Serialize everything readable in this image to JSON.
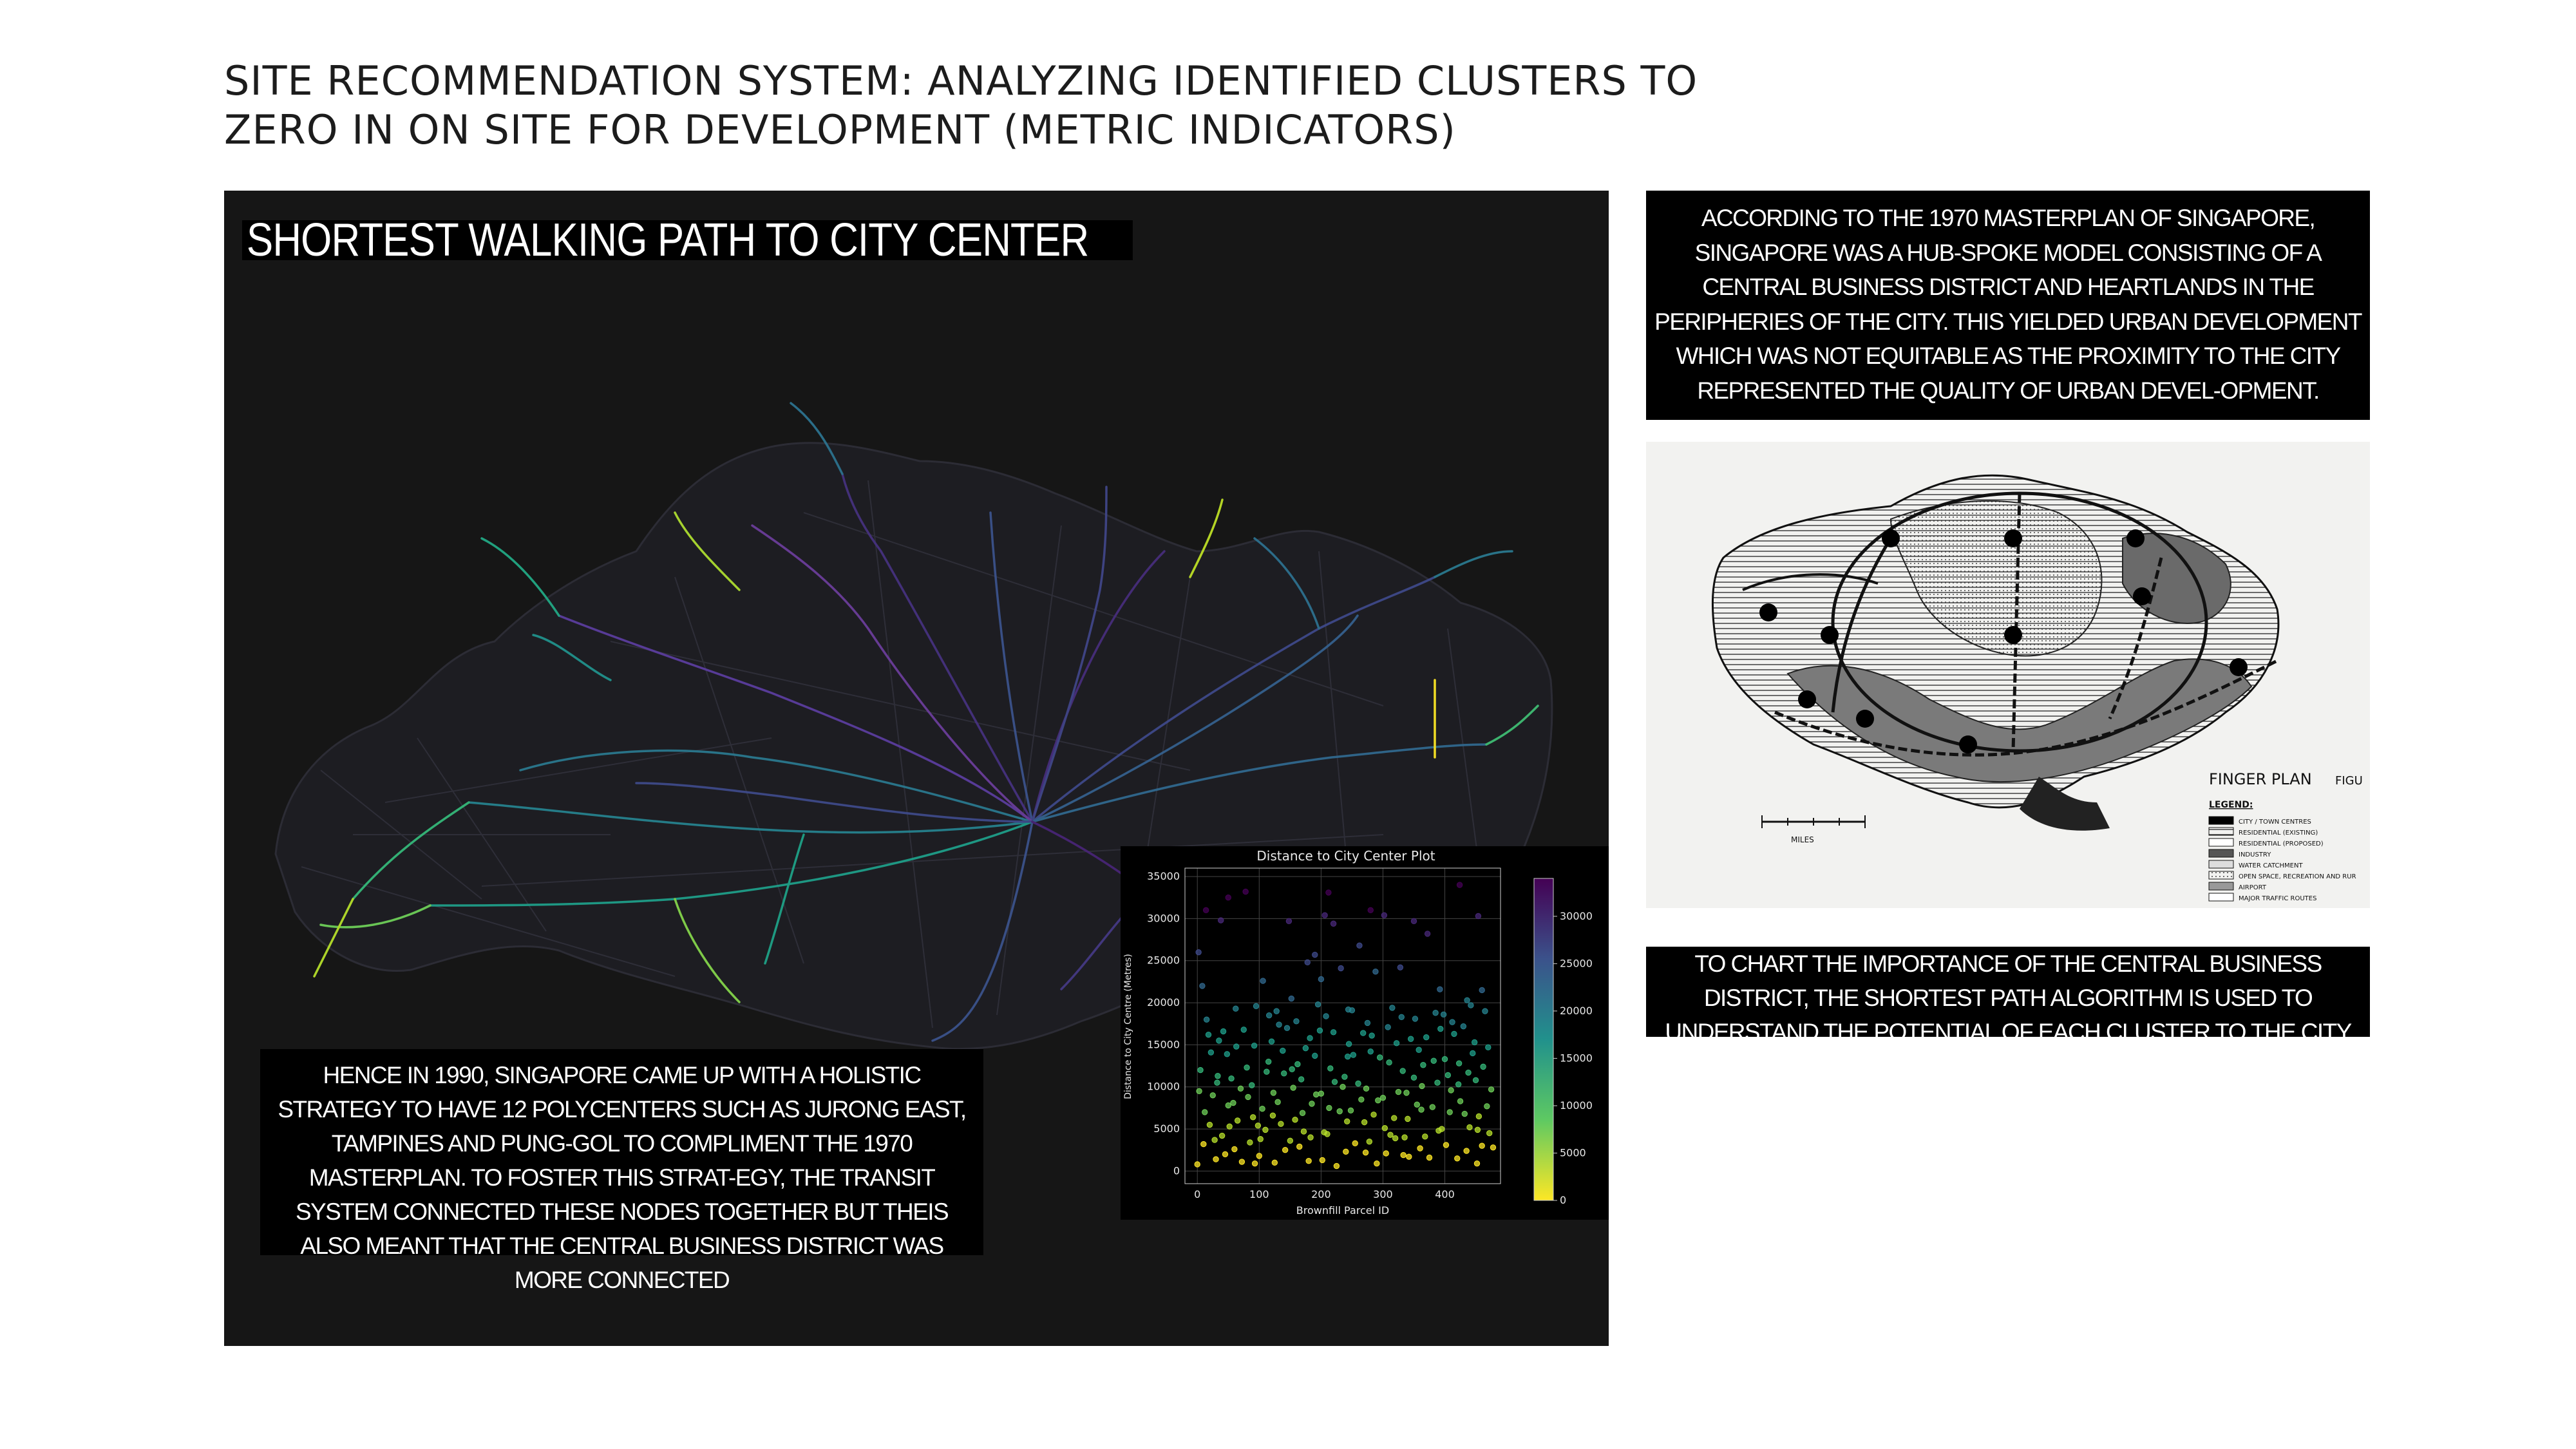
{
  "page": {
    "title": "SITE RECOMMENDATION SYSTEM: ANALYZING IDENTIFIED CLUSTERS TO\nZERO IN ON SITE FOR DEVELOPMENT (METRIC INDICATORS)"
  },
  "map_panel": {
    "title": "SHORTEST WALKING PATH TO CITY CENTER",
    "caption": "HENCE IN 1990, SINGAPORE CAME UP WITH A HOLISTIC STRATEGY TO HAVE 12 POLYCENTERS SUCH AS JURONG EAST, TAMPINES AND PUNG-GOL TO COMPLIMENT THE 1970 MASTERPLAN. TO FOSTER THIS STRAT-EGY, THE TRANSIT SYSTEM CONNECTED THESE NODES TOGETHER BUT THEIS ALSO MEANT THAT THE CENTRAL BUSINESS DISTRICT WAS MORE CONNECTED"
  },
  "right_column": {
    "intro_text": "ACCORDING TO THE 1970 MASTERPLAN OF SINGAPORE, SINGAPORE WAS A HUB-SPOKE MODEL CONSISTING OF A CENTRAL BUSINESS DISTRICT AND HEARTLANDS IN THE PERIPHERIES OF THE CITY. THIS YIELDED URBAN DEVELOPMENT WHICH WAS NOT EQUITABLE AS THE PROXIMITY TO THE CITY REPRESENTED THE QUALITY OF URBAN DEVEL-OPMENT.",
    "finger_plan": {
      "title": "FINGER PLAN",
      "figure_label": "FIGU",
      "legend_heading": "LEGEND:",
      "legend": [
        "CITY / TOWN CENTRES",
        "RESIDENTIAL (EXISTING)",
        "RESIDENTIAL (PROPOSED)",
        "INDUSTRY",
        "WATER CATCHMENT",
        "OPEN SPACE, RECREATION AND RUR",
        "AIRPORT",
        "MAJOR TRAFFIC ROUTES"
      ],
      "scale_label": "MILES"
    },
    "bottom_text": "TO CHART THE IMPORTANCE OF THE CENTRAL BUSINESS DISTRICT, THE SHORTEST PATH ALGORITHM IS USED TO UNDERSTAND THE POTENTIAL OF EACH CLUSTER TO THE CITY CENTER."
  },
  "chart_data": {
    "type": "scatter",
    "title": "Distance to City Center Plot",
    "xlabel": "Brownfill Parcel ID",
    "ylabel": "Distance to City Centre (Metres)",
    "xlim": [
      -20,
      490
    ],
    "ylim": [
      -1500,
      36000
    ],
    "xticks": [
      0,
      100,
      200,
      300,
      400
    ],
    "yticks": [
      0,
      5000,
      10000,
      15000,
      20000,
      25000,
      30000,
      35000
    ],
    "grid": true,
    "colorbar": {
      "ticks": [
        0,
        5000,
        10000,
        15000,
        20000,
        25000,
        30000
      ],
      "range": [
        0,
        34000
      ],
      "colormap": "viridis"
    },
    "points": [
      [
        2,
        26000
      ],
      [
        8,
        22000
      ],
      [
        14,
        31000
      ],
      [
        38,
        29800
      ],
      [
        50,
        32500
      ],
      [
        78,
        33200
      ],
      [
        106,
        22600
      ],
      [
        116,
        18500
      ],
      [
        148,
        29700
      ],
      [
        152,
        20500
      ],
      [
        178,
        24800
      ],
      [
        190,
        25700
      ],
      [
        200,
        22800
      ],
      [
        206,
        30400
      ],
      [
        212,
        33100
      ],
      [
        220,
        29400
      ],
      [
        232,
        24100
      ],
      [
        244,
        19200
      ],
      [
        262,
        26800
      ],
      [
        280,
        31000
      ],
      [
        288,
        23700
      ],
      [
        302,
        30400
      ],
      [
        328,
        24200
      ],
      [
        350,
        29700
      ],
      [
        372,
        28200
      ],
      [
        392,
        21600
      ],
      [
        424,
        34000
      ],
      [
        436,
        20300
      ],
      [
        454,
        30300
      ],
      [
        460,
        21500
      ],
      [
        0,
        800
      ],
      [
        10,
        3200
      ],
      [
        20,
        5500
      ],
      [
        30,
        1400
      ],
      [
        40,
        4200
      ],
      [
        50,
        7800
      ],
      [
        60,
        2600
      ],
      [
        70,
        9800
      ],
      [
        80,
        12300
      ],
      [
        90,
        6400
      ],
      [
        100,
        1800
      ],
      [
        110,
        4900
      ],
      [
        120,
        15400
      ],
      [
        130,
        8200
      ],
      [
        140,
        11600
      ],
      [
        150,
        3600
      ],
      [
        160,
        17800
      ],
      [
        170,
        6900
      ],
      [
        180,
        1200
      ],
      [
        190,
        13700
      ],
      [
        200,
        9200
      ],
      [
        210,
        4400
      ],
      [
        220,
        16500
      ],
      [
        230,
        7100
      ],
      [
        240,
        2300
      ],
      [
        250,
        19100
      ],
      [
        260,
        10400
      ],
      [
        270,
        5800
      ],
      [
        280,
        14200
      ],
      [
        290,
        900
      ],
      [
        300,
        8700
      ],
      [
        310,
        12900
      ],
      [
        320,
        3900
      ],
      [
        330,
        18300
      ],
      [
        340,
        6200
      ],
      [
        350,
        11100
      ],
      [
        360,
        2700
      ],
      [
        370,
        15900
      ],
      [
        380,
        7600
      ],
      [
        390,
        4800
      ],
      [
        400,
        13300
      ],
      [
        410,
        9600
      ],
      [
        420,
        1500
      ],
      [
        430,
        17200
      ],
      [
        440,
        5200
      ],
      [
        450,
        10800
      ],
      [
        460,
        3000
      ],
      [
        470,
        14700
      ],
      [
        5,
        12000
      ],
      [
        15,
        18000
      ],
      [
        25,
        9000
      ],
      [
        35,
        15500
      ],
      [
        45,
        2000
      ],
      [
        55,
        11000
      ],
      [
        65,
        6000
      ],
      [
        75,
        16800
      ],
      [
        85,
        3400
      ],
      [
        95,
        19600
      ],
      [
        105,
        7400
      ],
      [
        115,
        13000
      ],
      [
        125,
        1000
      ],
      [
        135,
        5600
      ],
      [
        145,
        17000
      ],
      [
        155,
        9900
      ],
      [
        165,
        2900
      ],
      [
        175,
        14600
      ],
      [
        185,
        8000
      ],
      [
        195,
        19800
      ],
      [
        205,
        4600
      ],
      [
        215,
        12200
      ],
      [
        225,
        600
      ],
      [
        235,
        10000
      ],
      [
        245,
        15100
      ],
      [
        255,
        3300
      ],
      [
        265,
        8500
      ],
      [
        275,
        17600
      ],
      [
        285,
        6700
      ],
      [
        295,
        13500
      ],
      [
        305,
        2100
      ],
      [
        315,
        19400
      ],
      [
        325,
        9400
      ],
      [
        335,
        4000
      ],
      [
        345,
        15700
      ],
      [
        355,
        7900
      ],
      [
        365,
        12600
      ],
      [
        375,
        1600
      ],
      [
        385,
        18800
      ],
      [
        395,
        5000
      ],
      [
        405,
        11400
      ],
      [
        415,
        16300
      ],
      [
        425,
        8300
      ],
      [
        435,
        2400
      ],
      [
        445,
        14000
      ],
      [
        455,
        6500
      ],
      [
        465,
        19000
      ],
      [
        475,
        9700
      ],
      [
        12,
        7000
      ],
      [
        22,
        14100
      ],
      [
        32,
        10500
      ],
      [
        42,
        16600
      ],
      [
        52,
        5300
      ],
      [
        62,
        19300
      ],
      [
        72,
        1100
      ],
      [
        82,
        8800
      ],
      [
        92,
        14900
      ],
      [
        102,
        3800
      ],
      [
        112,
        11800
      ],
      [
        122,
        6600
      ],
      [
        132,
        17400
      ],
      [
        142,
        2500
      ],
      [
        162,
        12700
      ],
      [
        172,
        4700
      ],
      [
        182,
        15800
      ],
      [
        192,
        9100
      ],
      [
        202,
        1300
      ],
      [
        222,
        10600
      ],
      [
        242,
        5900
      ],
      [
        252,
        13800
      ],
      [
        272,
        2200
      ],
      [
        282,
        16100
      ],
      [
        292,
        8400
      ],
      [
        312,
        4300
      ],
      [
        322,
        15200
      ],
      [
        332,
        11900
      ],
      [
        342,
        1700
      ],
      [
        352,
        18100
      ],
      [
        362,
        7300
      ],
      [
        382,
        13100
      ],
      [
        402,
        3100
      ],
      [
        412,
        17700
      ],
      [
        422,
        10300
      ],
      [
        432,
        6800
      ],
      [
        442,
        19700
      ],
      [
        452,
        900
      ],
      [
        462,
        12400
      ],
      [
        472,
        4500
      ],
      [
        18,
        16200
      ],
      [
        48,
        13900
      ],
      [
        88,
        10200
      ],
      [
        128,
        19000
      ],
      [
        168,
        10900
      ],
      [
        208,
        18400
      ],
      [
        248,
        7200
      ],
      [
        268,
        16400
      ],
      [
        308,
        17100
      ],
      [
        338,
        9300
      ],
      [
        368,
        4100
      ],
      [
        388,
        10500
      ],
      [
        408,
        7000
      ],
      [
        448,
        15300
      ],
      [
        28,
        3700
      ],
      [
        58,
        8100
      ],
      [
        98,
        5400
      ],
      [
        138,
        14300
      ],
      [
        158,
        6100
      ],
      [
        198,
        16700
      ],
      [
        238,
        11200
      ],
      [
        278,
        3500
      ],
      [
        318,
        6300
      ],
      [
        358,
        14400
      ],
      [
        398,
        18600
      ],
      [
        438,
        11700
      ],
      [
        468,
        7700
      ],
      [
        3,
        9500
      ],
      [
        33,
        11300
      ],
      [
        63,
        14800
      ],
      [
        93,
        900
      ],
      [
        123,
        9300
      ],
      [
        153,
        12100
      ],
      [
        183,
        4000
      ],
      [
        213,
        7500
      ],
      [
        243,
        13600
      ],
      [
        273,
        9800
      ],
      [
        303,
        5100
      ],
      [
        333,
        1900
      ],
      [
        363,
        10100
      ],
      [
        393,
        16900
      ],
      [
        423,
        12800
      ],
      [
        453,
        4900
      ],
      [
        478,
        2800
      ]
    ]
  }
}
